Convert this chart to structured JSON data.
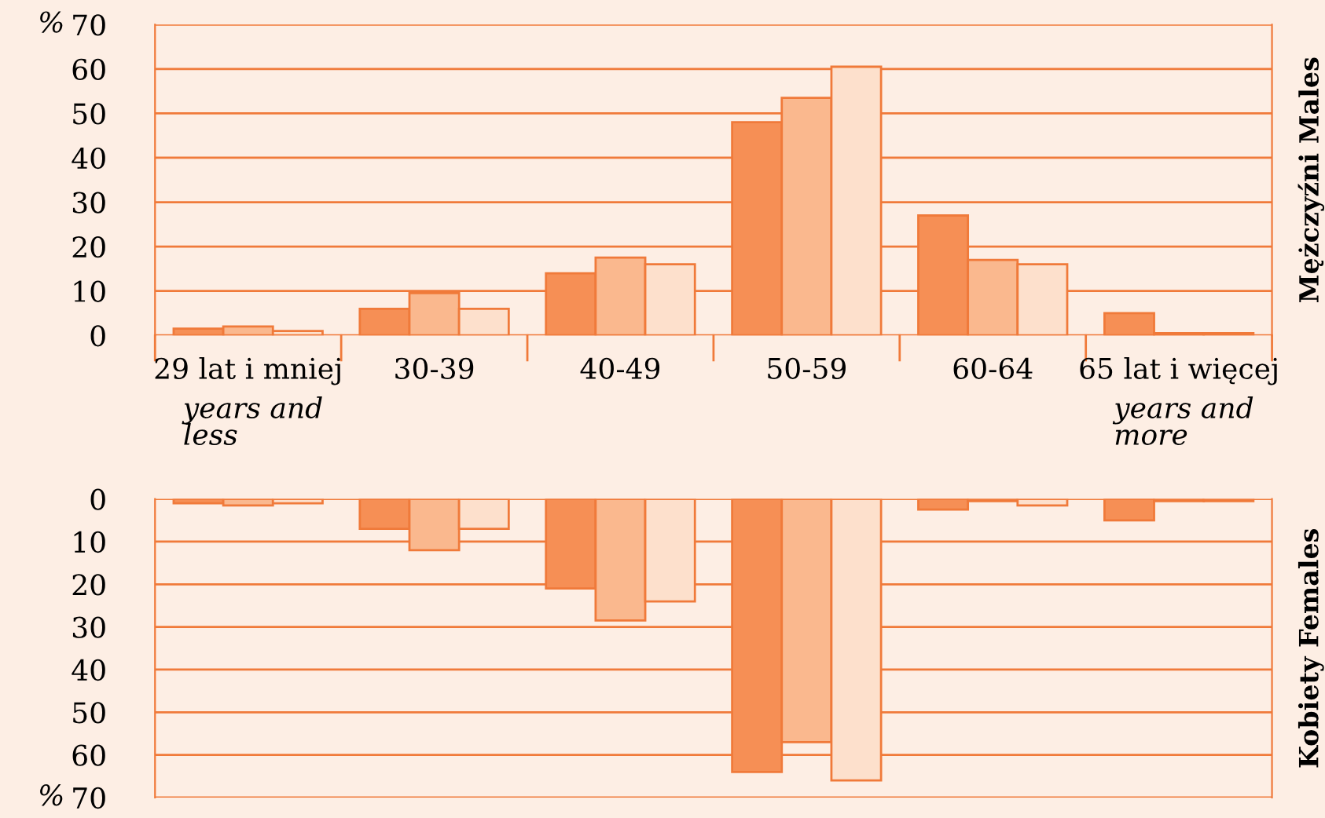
{
  "chart_data": [
    {
      "type": "bar",
      "ylabel": "%",
      "y2label": "Mężczyźni Males",
      "categories": [
        "29 lat i mniej\nyears and\nless",
        "30-39",
        "40-49",
        "50-59",
        "60-64",
        "65 lat i więcej\nyears and\nmore"
      ],
      "series": [
        {
          "color": "#f68f55",
          "values": [
            1.5,
            6,
            14,
            48,
            27,
            5
          ]
        },
        {
          "color": "#fab88e",
          "values": [
            2,
            9.5,
            17.5,
            53.5,
            17,
            0.5
          ]
        },
        {
          "color": "#fde0cc",
          "values": [
            1,
            6,
            16,
            60.5,
            16,
            0.5
          ]
        }
      ],
      "ylim": [
        0,
        70
      ],
      "yticks": [
        0,
        10,
        20,
        30,
        40,
        50,
        60,
        70
      ],
      "grid": "y"
    },
    {
      "type": "bar",
      "ylabel": "%",
      "y2label": "Kobiety Females",
      "categories": [
        null,
        null,
        null,
        null,
        null,
        null
      ],
      "series": [
        {
          "color": "#f68f55",
          "values": [
            1,
            7,
            21,
            64,
            2.5,
            5
          ]
        },
        {
          "color": "#fab88e",
          "values": [
            1.5,
            12,
            28.5,
            57,
            0.5,
            0.5
          ]
        },
        {
          "color": "#fde0cc",
          "values": [
            1,
            7,
            24,
            66,
            1.5,
            0.5
          ]
        }
      ],
      "ylim": [
        70,
        0
      ],
      "yticks": [
        0,
        10,
        20,
        30,
        40,
        50,
        60,
        70
      ],
      "grid": "y",
      "tick_labels": "y"
    }
  ]
}
